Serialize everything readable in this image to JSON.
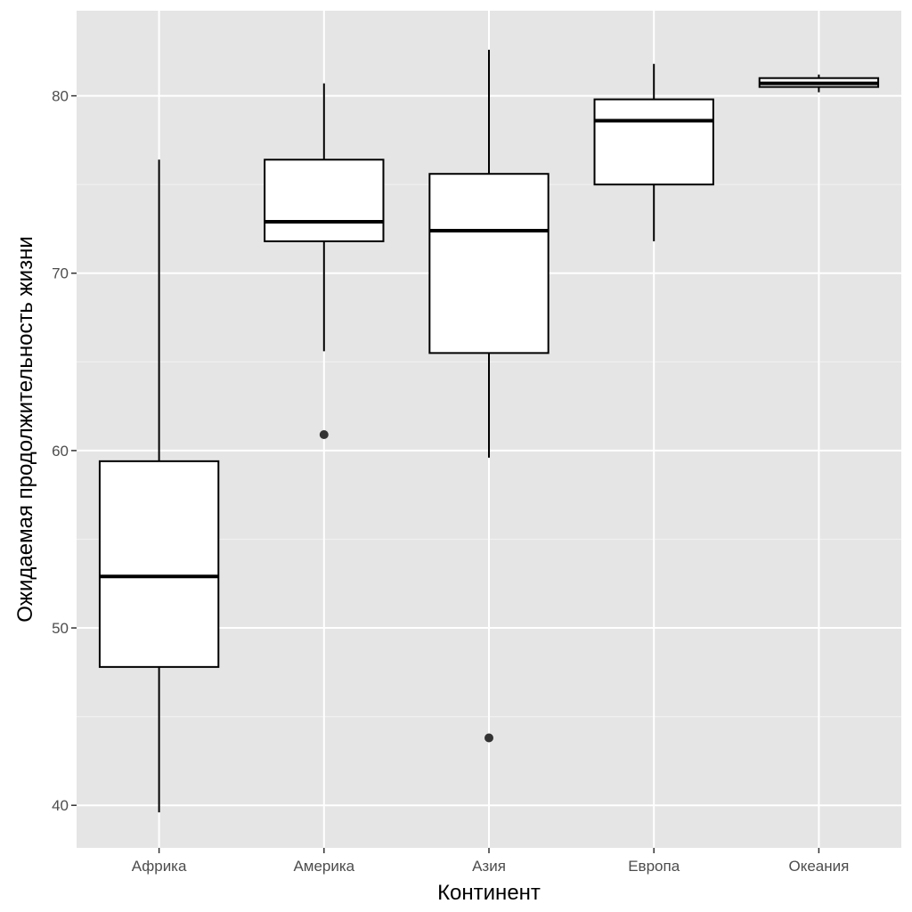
{
  "chart_data": {
    "type": "boxplot",
    "title": "",
    "xlabel": "Континент",
    "ylabel": "Ожидаемая продолжительность жизни",
    "ylim": [
      37.6,
      84.8
    ],
    "y_ticks": [
      40,
      50,
      60,
      70,
      80
    ],
    "grid": true,
    "categories": [
      "Африка",
      "Америка",
      "Азия",
      "Европа",
      "Океания"
    ],
    "boxes": [
      {
        "category": "Африка",
        "whisker_low": 39.6,
        "q1": 47.8,
        "median": 52.9,
        "q3": 59.4,
        "whisker_high": 76.4,
        "outliers": []
      },
      {
        "category": "Америка",
        "whisker_low": 65.6,
        "q1": 71.8,
        "median": 72.9,
        "q3": 76.4,
        "whisker_high": 80.7,
        "outliers": [
          60.9
        ]
      },
      {
        "category": "Азия",
        "whisker_low": 59.6,
        "q1": 65.5,
        "median": 72.4,
        "q3": 75.6,
        "whisker_high": 82.6,
        "outliers": [
          43.8
        ]
      },
      {
        "category": "Европа",
        "whisker_low": 71.8,
        "q1": 75.0,
        "median": 78.6,
        "q3": 79.8,
        "whisker_high": 81.8,
        "outliers": []
      },
      {
        "category": "Океания",
        "whisker_low": 80.2,
        "q1": 80.5,
        "median": 80.7,
        "q3": 81.0,
        "whisker_high": 81.2,
        "outliers": []
      }
    ],
    "colors": {
      "panel": "#e5e5e5",
      "grid_major": "#ffffff",
      "grid_minor": "#f0f0f0",
      "box_fill": "#ffffff",
      "box_stroke": "#000000",
      "outlier": "#333333"
    }
  }
}
